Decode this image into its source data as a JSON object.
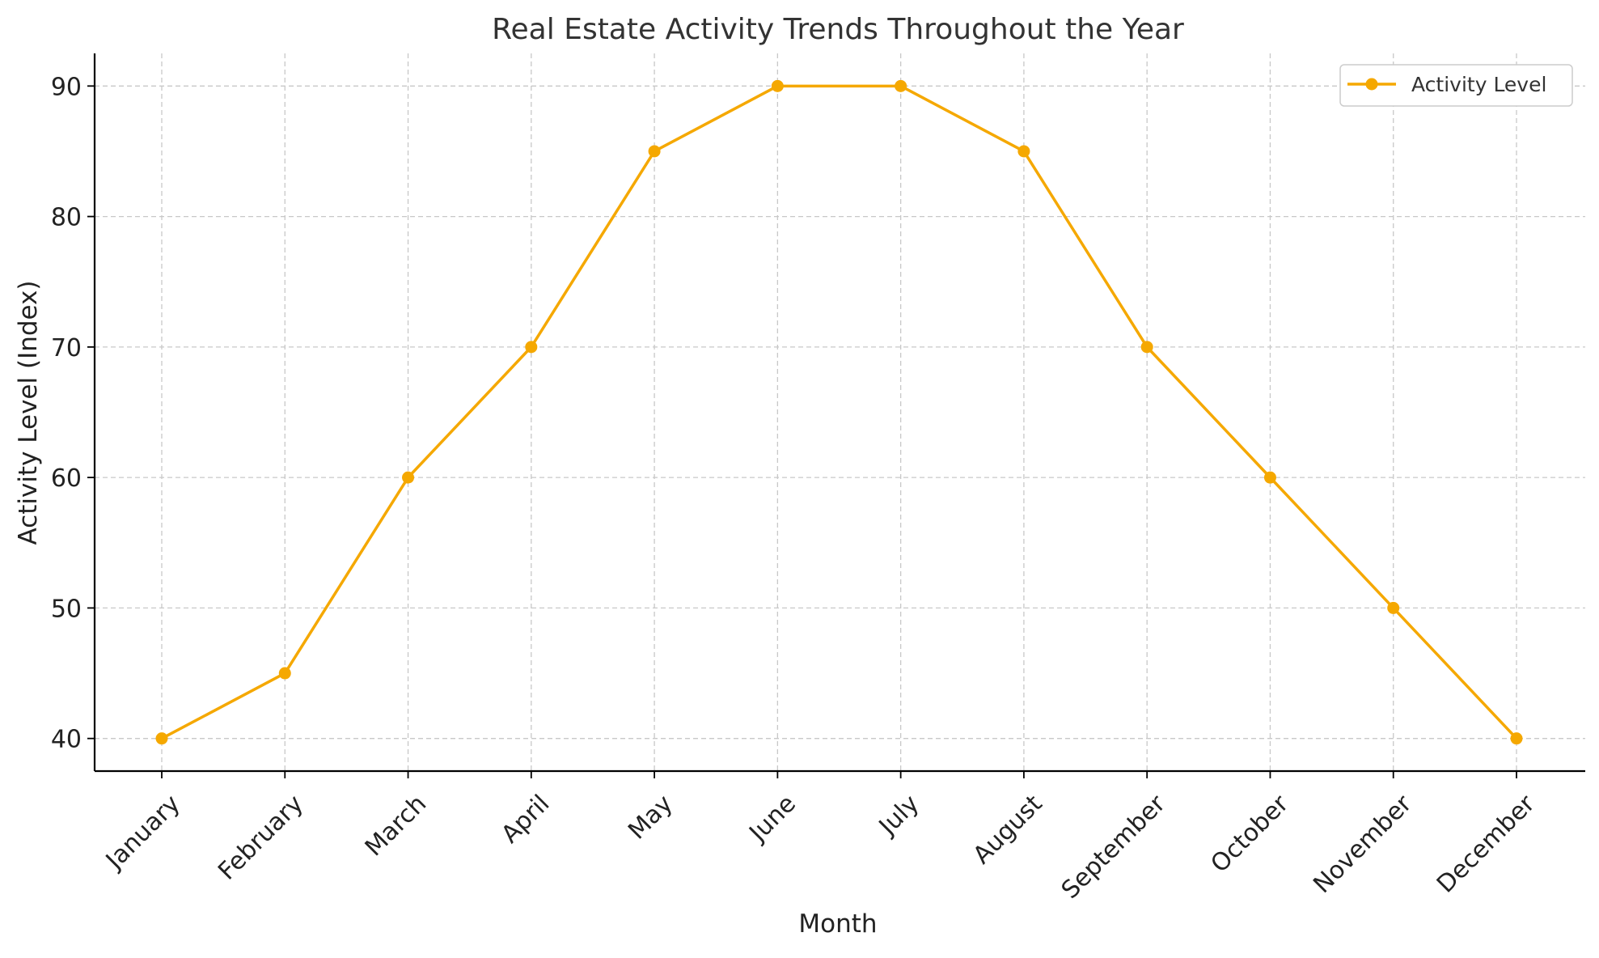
{
  "chart_data": {
    "type": "line",
    "title": "Real Estate Activity Trends Throughout the Year",
    "xlabel": "Month",
    "ylabel": "Activity Level (Index)",
    "categories": [
      "January",
      "February",
      "March",
      "April",
      "May",
      "June",
      "July",
      "August",
      "September",
      "October",
      "November",
      "December"
    ],
    "series": [
      {
        "name": "Activity Level",
        "values": [
          40,
          45,
          60,
          70,
          85,
          90,
          90,
          85,
          70,
          60,
          50,
          40
        ],
        "color": "#f5a800"
      }
    ],
    "yticks": [
      40,
      50,
      60,
      70,
      80,
      90
    ],
    "ylim": [
      37.5,
      92.5
    ],
    "grid": true,
    "legend_position": "top-right"
  }
}
